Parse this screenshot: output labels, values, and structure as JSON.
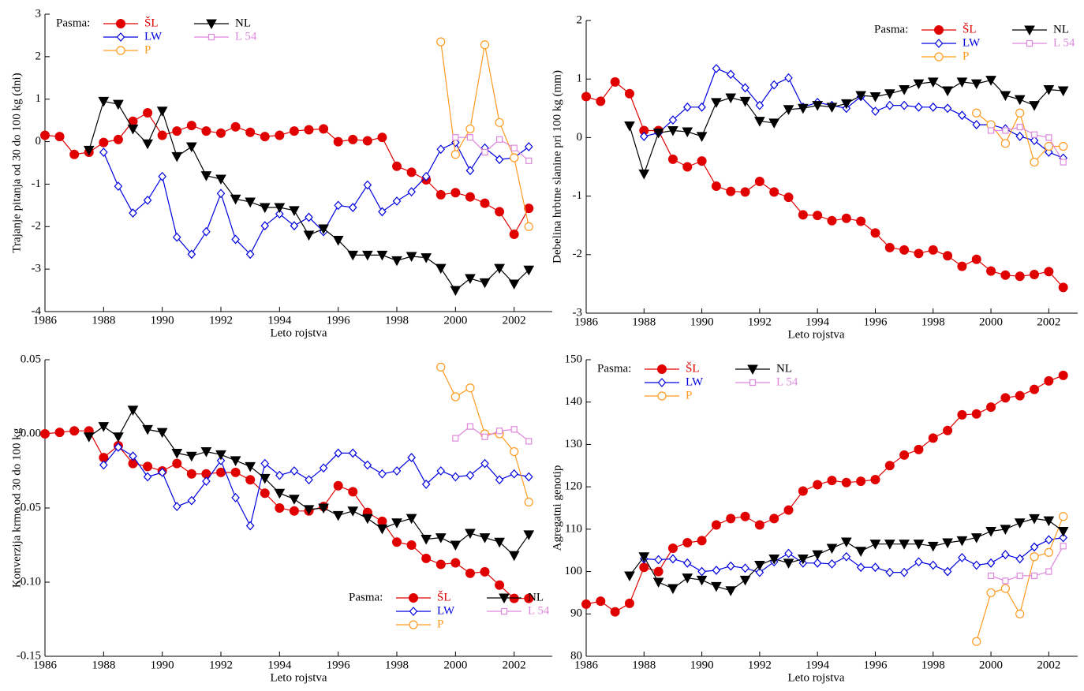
{
  "chart_data": [
    {
      "type": "line",
      "ylabel": "Trajanje pitanja od 30 do 100 kg (dni)",
      "xlabel": "Leto rojstva",
      "legend_title": "Pasma:",
      "legend": "upper left",
      "x": [
        1986,
        1986.5,
        1987,
        1987.5,
        1988,
        1988.5,
        1989,
        1989.5,
        1990,
        1990.5,
        1991,
        1991.5,
        1992,
        1992.5,
        1993,
        1993.5,
        1994,
        1994.5,
        1995,
        1995.5,
        1996,
        1996.5,
        1997,
        1997.5,
        1998,
        1998.5,
        1999,
        1999.5,
        2000,
        2000.5,
        2001,
        2001.5,
        2002,
        2002.5
      ],
      "xlim": [
        1986,
        2003.3
      ],
      "xticks": [
        1986,
        1988,
        1990,
        1992,
        1994,
        1996,
        1998,
        2000,
        2002
      ],
      "ylim": [
        -4,
        3
      ],
      "yticks": [
        -4,
        -3,
        -2,
        -1,
        0,
        1,
        2,
        3
      ],
      "series": [
        {
          "name": "ŠL",
          "color": "#e00000",
          "marker": "circle-filled",
          "values": [
            0.15,
            0.12,
            -0.3,
            -0.25,
            -0.02,
            0.05,
            0.48,
            0.68,
            0.15,
            0.25,
            0.38,
            0.25,
            0.2,
            0.35,
            0.22,
            0.12,
            0.15,
            0.25,
            0.28,
            0.3,
            0.0,
            0.05,
            0.02,
            0.1,
            -0.58,
            -0.72,
            -0.9,
            -1.25,
            -1.2,
            -1.3,
            -1.45,
            -1.65,
            -2.18,
            -1.57
          ]
        },
        {
          "name": "LW",
          "color": "#0000e0",
          "marker": "diamond",
          "values": [
            null,
            null,
            null,
            null,
            -0.25,
            -1.05,
            -1.68,
            -1.38,
            -0.82,
            -2.25,
            -2.65,
            -2.12,
            -1.22,
            -2.3,
            -2.65,
            -1.98,
            -1.7,
            -1.98,
            -1.78,
            -2.12,
            -1.5,
            -1.55,
            -1.02,
            -1.65,
            -1.4,
            -1.18,
            -0.82,
            -0.18,
            -0.02,
            -0.68,
            -0.15,
            -0.42,
            -0.38,
            -0.12
          ]
        },
        {
          "name": "P",
          "color": "#ff9a20",
          "marker": "circle-open",
          "values": [
            null,
            null,
            null,
            null,
            null,
            null,
            null,
            null,
            null,
            null,
            null,
            null,
            null,
            null,
            null,
            null,
            null,
            null,
            null,
            null,
            null,
            null,
            null,
            null,
            null,
            null,
            null,
            2.35,
            -0.3,
            0.3,
            2.28,
            0.45,
            -0.38,
            -2.0
          ]
        },
        {
          "name": "NL",
          "color": "#000000",
          "marker": "triangle-down",
          "values": [
            null,
            null,
            null,
            -0.2,
            0.95,
            0.88,
            0.3,
            -0.05,
            0.72,
            -0.35,
            -0.12,
            -0.8,
            -0.88,
            -1.35,
            -1.42,
            -1.55,
            -1.55,
            -1.62,
            -2.2,
            -2.05,
            -2.32,
            -2.67,
            -2.67,
            -2.67,
            -2.8,
            -2.7,
            -2.73,
            -2.98,
            -3.5,
            -3.22,
            -3.32,
            -2.98,
            -3.35,
            -3.02
          ]
        },
        {
          "name": "L 54",
          "color": "#dd88dd",
          "marker": "square",
          "values": [
            null,
            null,
            null,
            null,
            null,
            null,
            null,
            null,
            null,
            null,
            null,
            null,
            null,
            null,
            null,
            null,
            null,
            null,
            null,
            null,
            null,
            null,
            null,
            null,
            null,
            null,
            null,
            null,
            0.1,
            0.1,
            -0.25,
            0.05,
            -0.15,
            -0.45
          ]
        }
      ]
    },
    {
      "type": "line",
      "ylabel": "Debelina hrbtne slanine pri 100 kg (mm)",
      "xlabel": "Leto rojstva",
      "legend_title": "Pasma:",
      "legend": "upper right",
      "x": [
        1986,
        1986.5,
        1987,
        1987.5,
        1988,
        1988.5,
        1989,
        1989.5,
        1990,
        1990.5,
        1991,
        1991.5,
        1992,
        1992.5,
        1993,
        1993.5,
        1994,
        1994.5,
        1995,
        1995.5,
        1996,
        1996.5,
        1997,
        1997.5,
        1998,
        1998.5,
        1999,
        1999.5,
        2000,
        2000.5,
        2001,
        2001.5,
        2002,
        2002.5
      ],
      "xlim": [
        1986,
        2003
      ],
      "xticks": [
        1986,
        1988,
        1990,
        1992,
        1994,
        1996,
        1998,
        2000,
        2002
      ],
      "ylim": [
        -3,
        2
      ],
      "yticks": [
        -3,
        -2,
        -1,
        0,
        1,
        2
      ],
      "series": [
        {
          "name": "ŠL",
          "color": "#e00000",
          "marker": "circle-filled",
          "values": [
            0.7,
            0.62,
            0.95,
            0.75,
            0.12,
            0.12,
            -0.37,
            -0.5,
            -0.4,
            -0.83,
            -0.92,
            -0.93,
            -0.75,
            -0.93,
            -1.02,
            -1.32,
            -1.33,
            -1.42,
            -1.38,
            -1.43,
            -1.63,
            -1.88,
            -1.92,
            -1.98,
            -1.92,
            -2.02,
            -2.2,
            -2.08,
            -2.28,
            -2.35,
            -2.37,
            -2.34,
            -2.29,
            -2.56
          ]
        },
        {
          "name": "LW",
          "color": "#0000e0",
          "marker": "diamond",
          "values": [
            null,
            null,
            null,
            null,
            0.02,
            0.08,
            0.3,
            0.52,
            0.52,
            1.18,
            1.08,
            0.85,
            0.55,
            0.9,
            1.02,
            0.52,
            0.6,
            0.55,
            0.5,
            0.7,
            0.45,
            0.55,
            0.55,
            0.52,
            0.52,
            0.5,
            0.38,
            0.22,
            0.22,
            0.15,
            0.02,
            -0.05,
            -0.25,
            -0.35
          ]
        },
        {
          "name": "P",
          "color": "#ff9a20",
          "marker": "circle-open",
          "values": [
            null,
            null,
            null,
            null,
            null,
            null,
            null,
            null,
            null,
            null,
            null,
            null,
            null,
            null,
            null,
            null,
            null,
            null,
            null,
            null,
            null,
            null,
            null,
            null,
            null,
            null,
            null,
            0.42,
            0.22,
            -0.1,
            0.42,
            -0.42,
            -0.15,
            -0.15
          ]
        },
        {
          "name": "NL",
          "color": "#000000",
          "marker": "triangle-down",
          "values": [
            null,
            null,
            null,
            0.2,
            -0.62,
            0.08,
            0.12,
            0.1,
            0.02,
            0.6,
            0.68,
            0.62,
            0.28,
            0.25,
            0.48,
            0.5,
            0.55,
            0.52,
            0.58,
            0.72,
            0.7,
            0.75,
            0.82,
            0.92,
            0.95,
            0.8,
            0.95,
            0.92,
            0.98,
            0.72,
            0.65,
            0.55,
            0.82,
            0.8
          ]
        },
        {
          "name": "L 54",
          "color": "#dd88dd",
          "marker": "square",
          "values": [
            null,
            null,
            null,
            null,
            null,
            null,
            null,
            null,
            null,
            null,
            null,
            null,
            null,
            null,
            null,
            null,
            null,
            null,
            null,
            null,
            null,
            null,
            null,
            null,
            null,
            null,
            null,
            null,
            0.12,
            0.12,
            0.18,
            0.05,
            0.0,
            -0.42
          ]
        }
      ]
    },
    {
      "type": "line",
      "ylabel": "Konverzija krme od 30 do 100 kg",
      "xlabel": "Leto rojstva",
      "legend_title": "Pasma:",
      "legend": "lower right",
      "x": [
        1986,
        1986.5,
        1987,
        1987.5,
        1988,
        1988.5,
        1989,
        1989.5,
        1990,
        1990.5,
        1991,
        1991.5,
        1992,
        1992.5,
        1993,
        1993.5,
        1994,
        1994.5,
        1995,
        1995.5,
        1996,
        1996.5,
        1997,
        1997.5,
        1998,
        1998.5,
        1999,
        1999.5,
        2000,
        2000.5,
        2001,
        2001.5,
        2002,
        2002.5
      ],
      "xlim": [
        1986,
        2003.3
      ],
      "xticks": [
        1986,
        1988,
        1990,
        1992,
        1994,
        1996,
        1998,
        2000,
        2002
      ],
      "ylim": [
        -0.15,
        0.05
      ],
      "yticks": [
        -0.15,
        {
          "value": -0.1,
          "label": "-0.10"
        },
        -0.05,
        {
          "value": 0,
          "label": "0.00"
        },
        0.05
      ],
      "series": [
        {
          "name": "ŠL",
          "color": "#e00000",
          "marker": "circle-filled",
          "values": [
            0,
            0.001,
            0.002,
            0.002,
            -0.016,
            -0.008,
            -0.02,
            -0.022,
            -0.025,
            -0.02,
            -0.027,
            -0.027,
            -0.026,
            -0.026,
            -0.031,
            -0.04,
            -0.05,
            -0.052,
            -0.052,
            -0.049,
            -0.035,
            -0.039,
            -0.053,
            -0.059,
            -0.073,
            -0.075,
            -0.084,
            -0.088,
            -0.087,
            -0.094,
            -0.093,
            -0.102,
            -0.111,
            -0.111
          ]
        },
        {
          "name": "LW",
          "color": "#0000e0",
          "marker": "diamond",
          "values": [
            null,
            null,
            null,
            null,
            -0.021,
            -0.009,
            -0.015,
            -0.029,
            -0.026,
            -0.049,
            -0.045,
            -0.032,
            -0.018,
            -0.043,
            -0.062,
            -0.02,
            -0.028,
            -0.025,
            -0.031,
            -0.023,
            -0.013,
            -0.013,
            -0.021,
            -0.027,
            -0.025,
            -0.016,
            -0.034,
            -0.025,
            -0.029,
            -0.028,
            -0.02,
            -0.031,
            -0.027,
            -0.029
          ]
        },
        {
          "name": "P",
          "color": "#ff9a20",
          "marker": "circle-open",
          "values": [
            null,
            null,
            null,
            null,
            null,
            null,
            null,
            null,
            null,
            null,
            null,
            null,
            null,
            null,
            null,
            null,
            null,
            null,
            null,
            null,
            null,
            null,
            null,
            null,
            null,
            null,
            null,
            0.045,
            0.025,
            0.031,
            0.0,
            0.0,
            -0.012,
            -0.046
          ]
        },
        {
          "name": "NL",
          "color": "#000000",
          "marker": "triangle-down",
          "values": [
            null,
            null,
            null,
            -0.002,
            0.005,
            -0.002,
            0.016,
            0.003,
            0.001,
            -0.013,
            -0.015,
            -0.012,
            -0.014,
            -0.018,
            -0.022,
            -0.03,
            -0.04,
            -0.044,
            -0.051,
            -0.05,
            -0.055,
            -0.052,
            -0.057,
            -0.064,
            -0.06,
            -0.057,
            -0.071,
            -0.07,
            -0.075,
            -0.067,
            -0.07,
            -0.073,
            -0.082,
            -0.068
          ]
        },
        {
          "name": "L 54",
          "color": "#dd88dd",
          "marker": "square",
          "values": [
            null,
            null,
            null,
            null,
            null,
            null,
            null,
            null,
            null,
            null,
            null,
            null,
            null,
            null,
            null,
            null,
            null,
            null,
            null,
            null,
            null,
            null,
            null,
            null,
            null,
            null,
            null,
            null,
            -0.003,
            0.005,
            -0.002,
            0.002,
            0.003,
            -0.005
          ]
        }
      ]
    },
    {
      "type": "line",
      "ylabel": "Agregatni genotip",
      "xlabel": "Leto rojstva",
      "legend_title": "Pasma:",
      "legend": "upper left",
      "x": [
        1986,
        1986.5,
        1987,
        1987.5,
        1988,
        1988.5,
        1989,
        1989.5,
        1990,
        1990.5,
        1991,
        1991.5,
        1992,
        1992.5,
        1993,
        1993.5,
        1994,
        1994.5,
        1995,
        1995.5,
        1996,
        1996.5,
        1997,
        1997.5,
        1998,
        1998.5,
        1999,
        1999.5,
        2000,
        2000.5,
        2001,
        2001.5,
        2002,
        2002.5
      ],
      "xlim": [
        1986,
        2003
      ],
      "xticks": [
        1986,
        1988,
        1990,
        1992,
        1994,
        1996,
        1998,
        2000,
        2002
      ],
      "ylim": [
        80,
        150
      ],
      "yticks": [
        80,
        90,
        100,
        110,
        120,
        130,
        140,
        150
      ],
      "series": [
        {
          "name": "ŠL",
          "color": "#e00000",
          "marker": "circle-filled",
          "values": [
            92.3,
            93,
            90.5,
            92.5,
            101,
            100,
            105.5,
            106.8,
            107.3,
            111,
            112.5,
            113,
            111,
            112.5,
            114.5,
            119,
            120.5,
            121.5,
            121,
            121.3,
            121.7,
            125,
            127.5,
            128.8,
            131.5,
            133.3,
            137,
            137.2,
            138.8,
            141,
            141.5,
            143,
            145,
            146.3
          ]
        },
        {
          "name": "LW",
          "color": "#0000e0",
          "marker": "diamond",
          "values": [
            null,
            null,
            null,
            null,
            103,
            102.8,
            103,
            102,
            100,
            100.3,
            101.3,
            100.8,
            99.8,
            102.3,
            104.3,
            102,
            102,
            101.8,
            103.5,
            101,
            101,
            99.8,
            99.8,
            102.3,
            101.5,
            100,
            103.3,
            101.5,
            102,
            104,
            103,
            105.8,
            107.5,
            108
          ]
        },
        {
          "name": "P",
          "color": "#ff9a20",
          "marker": "circle-open",
          "values": [
            null,
            null,
            null,
            null,
            null,
            null,
            null,
            null,
            null,
            null,
            null,
            null,
            null,
            null,
            null,
            null,
            null,
            null,
            null,
            null,
            null,
            null,
            null,
            null,
            null,
            null,
            null,
            83.5,
            95,
            96,
            90,
            103.5,
            104.5,
            113
          ]
        },
        {
          "name": "NL",
          "color": "#000000",
          "marker": "triangle-down",
          "values": [
            null,
            null,
            null,
            99,
            103.5,
            97.5,
            96,
            98.5,
            98,
            96.5,
            95.5,
            98,
            101.5,
            103,
            102,
            103,
            104,
            105.5,
            107,
            104.8,
            106.5,
            106.5,
            106.5,
            106.5,
            106,
            106.8,
            107.3,
            108,
            109.5,
            110,
            111.5,
            112.5,
            112,
            109.5
          ]
        },
        {
          "name": "L 54",
          "color": "#dd88dd",
          "marker": "square",
          "values": [
            null,
            null,
            null,
            null,
            null,
            null,
            null,
            null,
            null,
            null,
            null,
            null,
            null,
            null,
            null,
            null,
            null,
            null,
            null,
            null,
            null,
            null,
            null,
            null,
            null,
            null,
            null,
            null,
            99,
            97.8,
            99,
            99,
            100,
            106
          ]
        }
      ]
    }
  ]
}
